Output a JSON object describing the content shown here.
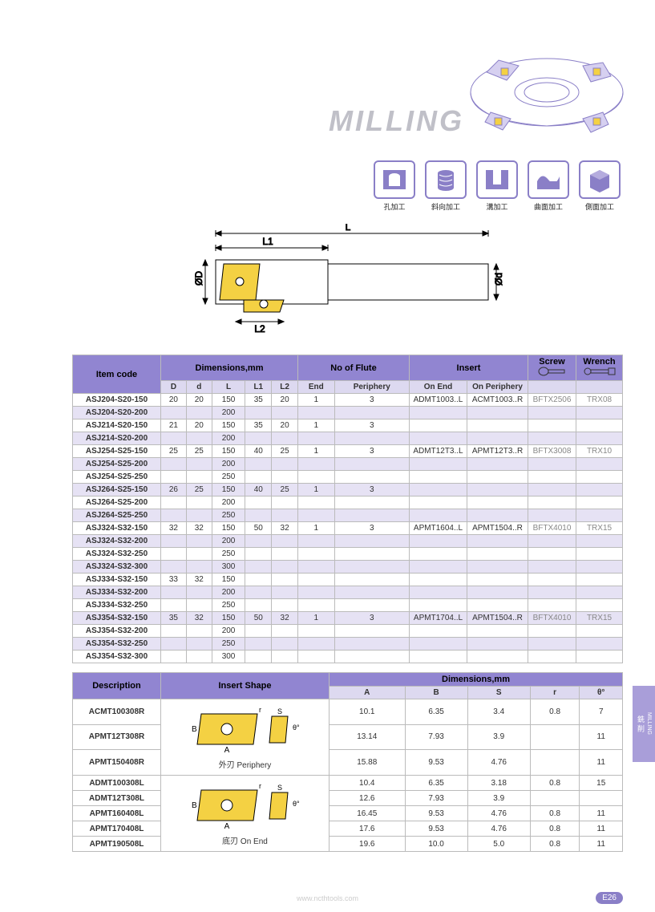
{
  "title": "MILLING",
  "operation_icons": [
    {
      "label": "孔加工"
    },
    {
      "label": "斜向加工"
    },
    {
      "label": "溝加工"
    },
    {
      "label": "曲面加工"
    },
    {
      "label": "側面加工"
    }
  ],
  "diagram_labels": {
    "L": "L",
    "L1": "L1",
    "L2": "L2",
    "D": "ØD",
    "d": "Ød"
  },
  "colors": {
    "header_bg": "#9185d1",
    "subheader_bg": "#ddd9f0",
    "alt_row_bg": "#e6e2f4",
    "title_gray": "#c0c0c8",
    "border": "#bbbbbb",
    "insert_fill": "#f4d143",
    "illus_stroke": "#8a7fc7"
  },
  "main_table": {
    "headers": {
      "item_code": "Item code",
      "dims": "Dimensions,mm",
      "flute": "No of Flute",
      "insert": "Insert",
      "screw": "Screw",
      "wrench": "Wrench",
      "D": "D",
      "d": "d",
      "L": "L",
      "L1": "L1",
      "L2": "L2",
      "end": "End",
      "periphery": "Periphery",
      "on_end": "On End",
      "on_periphery": "On Periphery"
    },
    "rows": [
      {
        "code": "ASJ204-S20-150",
        "D": "20",
        "d": "20",
        "L": "150",
        "L1": "35",
        "L2": "20",
        "end": "1",
        "per": "3",
        "onend": "ADMT1003..L",
        "onper": "ACMT1003..R",
        "screw": "BFTX2506",
        "wrench": "TRX08",
        "alt": false
      },
      {
        "code": "ASJ204-S20-200",
        "D": "",
        "d": "",
        "L": "200",
        "L1": "",
        "L2": "",
        "end": "",
        "per": "",
        "onend": "",
        "onper": "",
        "screw": "",
        "wrench": "",
        "alt": true
      },
      {
        "code": "ASJ214-S20-150",
        "D": "21",
        "d": "20",
        "L": "150",
        "L1": "35",
        "L2": "20",
        "end": "1",
        "per": "3",
        "onend": "",
        "onper": "",
        "screw": "",
        "wrench": "",
        "alt": false
      },
      {
        "code": "ASJ214-S20-200",
        "D": "",
        "d": "",
        "L": "200",
        "L1": "",
        "L2": "",
        "end": "",
        "per": "",
        "onend": "",
        "onper": "",
        "screw": "",
        "wrench": "",
        "alt": true
      },
      {
        "code": "ASJ254-S25-150",
        "D": "25",
        "d": "25",
        "L": "150",
        "L1": "40",
        "L2": "25",
        "end": "1",
        "per": "3",
        "onend": "ADMT12T3..L",
        "onper": "APMT12T3..R",
        "screw": "BFTX3008",
        "wrench": "TRX10",
        "alt": false
      },
      {
        "code": "ASJ254-S25-200",
        "D": "",
        "d": "",
        "L": "200",
        "L1": "",
        "L2": "",
        "end": "",
        "per": "",
        "onend": "",
        "onper": "",
        "screw": "",
        "wrench": "",
        "alt": true
      },
      {
        "code": "ASJ254-S25-250",
        "D": "",
        "d": "",
        "L": "250",
        "L1": "",
        "L2": "",
        "end": "",
        "per": "",
        "onend": "",
        "onper": "",
        "screw": "",
        "wrench": "",
        "alt": false
      },
      {
        "code": "ASJ264-S25-150",
        "D": "26",
        "d": "25",
        "L": "150",
        "L1": "40",
        "L2": "25",
        "end": "1",
        "per": "3",
        "onend": "",
        "onper": "",
        "screw": "",
        "wrench": "",
        "alt": true
      },
      {
        "code": "ASJ264-S25-200",
        "D": "",
        "d": "",
        "L": "200",
        "L1": "",
        "L2": "",
        "end": "",
        "per": "",
        "onend": "",
        "onper": "",
        "screw": "",
        "wrench": "",
        "alt": false
      },
      {
        "code": "ASJ264-S25-250",
        "D": "",
        "d": "",
        "L": "250",
        "L1": "",
        "L2": "",
        "end": "",
        "per": "",
        "onend": "",
        "onper": "",
        "screw": "",
        "wrench": "",
        "alt": true
      },
      {
        "code": "ASJ324-S32-150",
        "D": "32",
        "d": "32",
        "L": "150",
        "L1": "50",
        "L2": "32",
        "end": "1",
        "per": "3",
        "onend": "APMT1604..L",
        "onper": "APMT1504..R",
        "screw": "BFTX4010",
        "wrench": "TRX15",
        "alt": false
      },
      {
        "code": "ASJ324-S32-200",
        "D": "",
        "d": "",
        "L": "200",
        "L1": "",
        "L2": "",
        "end": "",
        "per": "",
        "onend": "",
        "onper": "",
        "screw": "",
        "wrench": "",
        "alt": true
      },
      {
        "code": "ASJ324-S32-250",
        "D": "",
        "d": "",
        "L": "250",
        "L1": "",
        "L2": "",
        "end": "",
        "per": "",
        "onend": "",
        "onper": "",
        "screw": "",
        "wrench": "",
        "alt": false
      },
      {
        "code": "ASJ324-S32-300",
        "D": "",
        "d": "",
        "L": "300",
        "L1": "",
        "L2": "",
        "end": "",
        "per": "",
        "onend": "",
        "onper": "",
        "screw": "",
        "wrench": "",
        "alt": true
      },
      {
        "code": "ASJ334-S32-150",
        "D": "33",
        "d": "32",
        "L": "150",
        "L1": "",
        "L2": "",
        "end": "",
        "per": "",
        "onend": "",
        "onper": "",
        "screw": "",
        "wrench": "",
        "alt": false
      },
      {
        "code": "ASJ334-S32-200",
        "D": "",
        "d": "",
        "L": "200",
        "L1": "",
        "L2": "",
        "end": "",
        "per": "",
        "onend": "",
        "onper": "",
        "screw": "",
        "wrench": "",
        "alt": true
      },
      {
        "code": "ASJ334-S32-250",
        "D": "",
        "d": "",
        "L": "250",
        "L1": "",
        "L2": "",
        "end": "",
        "per": "",
        "onend": "",
        "onper": "",
        "screw": "",
        "wrench": "",
        "alt": false
      },
      {
        "code": "ASJ354-S32-150",
        "D": "35",
        "d": "32",
        "L": "150",
        "L1": "50",
        "L2": "32",
        "end": "1",
        "per": "3",
        "onend": "APMT1704..L",
        "onper": "APMT1504..R",
        "screw": "BFTX4010",
        "wrench": "TRX15",
        "alt": true
      },
      {
        "code": "ASJ354-S32-200",
        "D": "",
        "d": "",
        "L": "200",
        "L1": "",
        "L2": "",
        "end": "",
        "per": "",
        "onend": "",
        "onper": "",
        "screw": "",
        "wrench": "",
        "alt": false
      },
      {
        "code": "ASJ354-S32-250",
        "D": "",
        "d": "",
        "L": "250",
        "L1": "",
        "L2": "",
        "end": "",
        "per": "",
        "onend": "",
        "onper": "",
        "screw": "",
        "wrench": "",
        "alt": true
      },
      {
        "code": "ASJ354-S32-300",
        "D": "",
        "d": "",
        "L": "300",
        "L1": "",
        "L2": "",
        "end": "",
        "per": "",
        "onend": "",
        "onper": "",
        "screw": "",
        "wrench": "",
        "alt": false
      }
    ]
  },
  "insert_table": {
    "headers": {
      "desc": "Description",
      "shape": "Insert Shape",
      "dims": "Dimensions,mm",
      "A": "A",
      "B": "B",
      "S": "S",
      "r": "r",
      "theta": "θ°"
    },
    "shape_caption_1": "外刃 Periphery",
    "shape_caption_2": "底刃 On End",
    "group1": [
      {
        "desc": "ACMT100308R",
        "A": "10.1",
        "B": "6.35",
        "S": "3.4",
        "r": "0.8",
        "theta": "7"
      },
      {
        "desc": "APMT12T308R",
        "A": "13.14",
        "B": "7.93",
        "S": "3.9",
        "r": "",
        "theta": "11"
      },
      {
        "desc": "APMT150408R",
        "A": "15.88",
        "B": "9.53",
        "S": "4.76",
        "r": "",
        "theta": "11"
      }
    ],
    "group2": [
      {
        "desc": "ADMT100308L",
        "A": "10.4",
        "B": "6.35",
        "S": "3.18",
        "r": "0.8",
        "theta": "15"
      },
      {
        "desc": "ADMT12T308L",
        "A": "12.6",
        "B": "7.93",
        "S": "3.9",
        "r": "",
        "theta": ""
      },
      {
        "desc": "APMT160408L",
        "A": "16.45",
        "B": "9.53",
        "S": "4.76",
        "r": "0.8",
        "theta": "11"
      },
      {
        "desc": "APMT170408L",
        "A": "17.6",
        "B": "9.53",
        "S": "4.76",
        "r": "0.8",
        "theta": "11"
      },
      {
        "desc": "APMT190508L",
        "A": "19.6",
        "B": "10.0",
        "S": "5.0",
        "r": "0.8",
        "theta": "11"
      }
    ]
  },
  "side_tab": {
    "cn": "銑 削",
    "en": "MILLING"
  },
  "page_number": "E26",
  "footer_url": "www.ncthtools.com"
}
